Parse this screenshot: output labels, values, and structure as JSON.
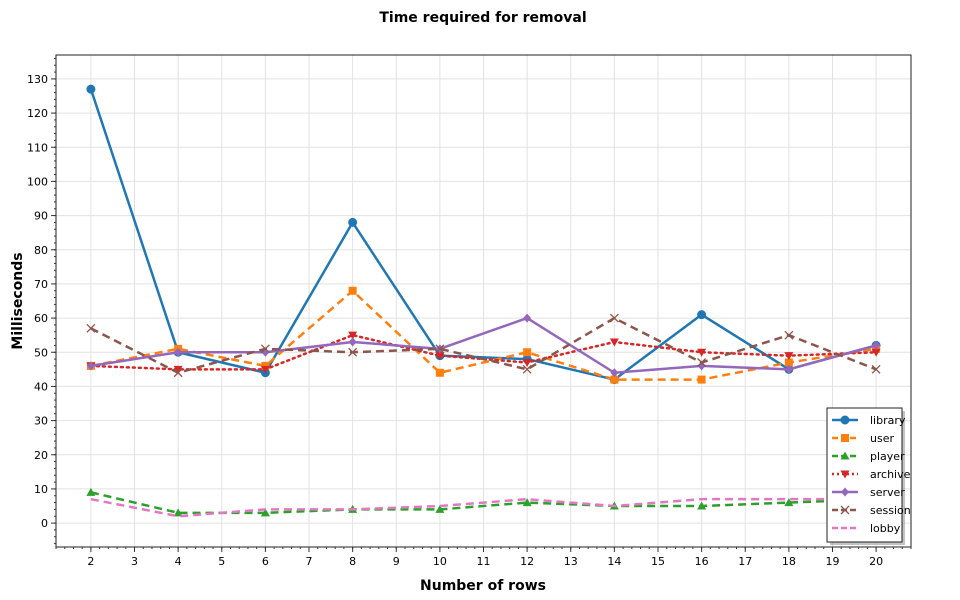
{
  "chart_data": {
    "type": "line",
    "title": "Time required for removal",
    "xlabel": "Number of rows",
    "ylabel": "Milliseconds",
    "xlim": [
      1.2,
      20.8
    ],
    "ylim": [
      -7,
      137
    ],
    "xticks": [
      2,
      3,
      4,
      5,
      6,
      7,
      8,
      9,
      10,
      11,
      12,
      13,
      14,
      15,
      16,
      17,
      18,
      19,
      20
    ],
    "yticks": [
      0,
      10,
      20,
      30,
      40,
      50,
      60,
      70,
      80,
      90,
      100,
      110,
      120,
      130
    ],
    "grid": true,
    "legend_position": "bottom-right",
    "x": [
      2,
      4,
      6,
      8,
      10,
      12,
      14,
      16,
      18,
      20
    ],
    "series": [
      {
        "name": "library",
        "color": "#1f77b4",
        "dash": "solid",
        "marker": "circle",
        "values": [
          127,
          50,
          44,
          88,
          49,
          48,
          42,
          61,
          45,
          52
        ]
      },
      {
        "name": "user",
        "color": "#ff7f0e",
        "dash": "dashed",
        "marker": "square",
        "values": [
          46,
          51,
          46,
          68,
          44,
          50,
          42,
          42,
          47,
          51
        ]
      },
      {
        "name": "player",
        "color": "#2ca02c",
        "dash": "dashed",
        "marker": "triangle-up",
        "values": [
          9,
          3,
          3,
          4,
          4,
          6,
          5,
          5,
          6,
          7
        ]
      },
      {
        "name": "archive",
        "color": "#d62728",
        "dash": "dotted",
        "marker": "triangle-down",
        "values": [
          46,
          45,
          45,
          55,
          49,
          47,
          53,
          50,
          49,
          50
        ]
      },
      {
        "name": "server",
        "color": "#9467bd",
        "dash": "solid",
        "marker": "diamond",
        "values": [
          46,
          50,
          50,
          53,
          51,
          60,
          44,
          46,
          45,
          52
        ]
      },
      {
        "name": "session",
        "color": "#8c564b",
        "dash": "dashed",
        "marker": "x",
        "values": [
          57,
          44,
          51,
          50,
          51,
          45,
          60,
          47,
          55,
          45
        ]
      },
      {
        "name": "lobby",
        "color": "#e377c2",
        "dash": "dashed",
        "marker": "none",
        "values": [
          7,
          2,
          4,
          4,
          5,
          7,
          5,
          7,
          7,
          7
        ]
      }
    ]
  }
}
